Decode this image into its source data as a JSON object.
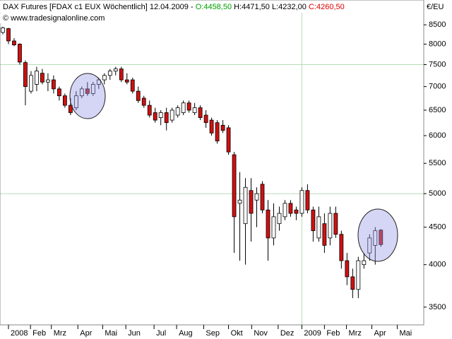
{
  "chart_data": {
    "type": "candlestick",
    "title": "DAX Futures [FDAX c1 EUX  Wöchentlich]",
    "date": "12.04.2009",
    "separator": "-",
    "ohlc_labels": [
      "O:4458,50",
      "H:4471,50",
      "L:4232,00",
      "C:4260,50"
    ],
    "ohlc_label_colors": [
      "#00a000",
      "#000000",
      "#000000",
      "#e00000"
    ],
    "copyright": "© www.tradesignalonline.com",
    "y_axis_label": "€/EU",
    "categories": [
      null,
      null,
      null,
      null,
      null,
      null,
      null,
      null,
      null,
      null,
      null,
      null,
      null,
      null,
      null,
      null,
      null,
      null,
      null,
      null,
      null,
      null,
      null,
      null,
      null,
      null,
      null,
      null,
      null,
      null,
      null,
      null,
      null,
      null,
      null,
      null,
      null,
      null,
      null,
      null,
      null,
      null,
      null,
      null,
      null,
      null,
      null,
      null,
      null,
      null,
      null,
      null,
      null,
      null,
      null,
      null,
      null,
      null,
      null,
      null,
      null,
      null,
      null,
      null,
      null,
      null,
      null,
      null
    ],
    "open": [
      8300,
      8400,
      8080,
      8000,
      7550,
      6900,
      7050,
      7300,
      7100,
      7150,
      6950,
      6800,
      6600,
      6550,
      6800,
      6950,
      6850,
      7050,
      7150,
      7250,
      7350,
      7400,
      7150,
      7150,
      6900,
      6750,
      6600,
      6450,
      6350,
      6450,
      6300,
      6400,
      6450,
      6650,
      6450,
      6550,
      6400,
      6300,
      6250,
      6200,
      6150,
      5650,
      4850,
      4550,
      5050,
      4900,
      5150,
      4750,
      4350,
      4550,
      4650,
      4850,
      4750,
      4700,
      5050,
      4750,
      4350,
      4550,
      4350,
      4700,
      4400,
      4050,
      3850,
      3700,
      4000,
      4150,
      4250,
      4458.5
    ],
    "high": [
      8450,
      8420,
      8150,
      8020,
      7600,
      7350,
      7450,
      7400,
      7300,
      7250,
      7000,
      6850,
      6750,
      6900,
      7000,
      7100,
      7100,
      7200,
      7300,
      7400,
      7450,
      7450,
      7300,
      7200,
      7000,
      6800,
      6700,
      6550,
      6500,
      6550,
      6550,
      6600,
      6700,
      6700,
      6650,
      6600,
      6500,
      6350,
      6300,
      6300,
      6200,
      5700,
      5350,
      5250,
      5250,
      5100,
      5200,
      4900,
      4850,
      4800,
      4900,
      4900,
      4800,
      5100,
      5150,
      4800,
      4800,
      4700,
      4800,
      4800,
      4450,
      4150,
      3950,
      4100,
      4150,
      4400,
      4500,
      4471.5
    ],
    "low": [
      8250,
      8000,
      7950,
      7500,
      6600,
      6850,
      6900,
      7050,
      6900,
      6850,
      6700,
      6550,
      6400,
      6500,
      6750,
      6800,
      6800,
      6950,
      7050,
      7150,
      7250,
      7100,
      7050,
      6850,
      6650,
      6550,
      6350,
      6250,
      6200,
      6100,
      6250,
      6350,
      6400,
      6450,
      6400,
      6300,
      6150,
      6000,
      5850,
      6050,
      5650,
      4150,
      4050,
      4000,
      4300,
      4500,
      4700,
      4050,
      4250,
      4450,
      4600,
      4650,
      4600,
      4650,
      4700,
      4300,
      4300,
      4150,
      4250,
      4350,
      3950,
      3750,
      3600,
      3600,
      3950,
      4050,
      4000,
      4232
    ],
    "close": [
      8420,
      8080,
      7980,
      7560,
      7000,
      7250,
      7350,
      7100,
      7150,
      6950,
      6800,
      6600,
      6450,
      6800,
      6950,
      6850,
      7050,
      7150,
      7250,
      7350,
      7400,
      7150,
      7100,
      6900,
      6700,
      6600,
      6400,
      6300,
      6450,
      6250,
      6500,
      6550,
      6650,
      6500,
      6550,
      6350,
      6250,
      6050,
      5900,
      6100,
      5700,
      4650,
      4900,
      5100,
      4700,
      5000,
      4750,
      4350,
      4650,
      4700,
      4850,
      4700,
      4700,
      5050,
      4750,
      4450,
      4650,
      4250,
      4700,
      4400,
      4050,
      3850,
      3700,
      4050,
      4050,
      4350,
      4450,
      4260.5
    ],
    "up_color": "#ffffff",
    "down_color": "#d01010",
    "log_scale": true,
    "ylim": [
      3310,
      9190
    ],
    "yticks": [
      3500,
      4000,
      4500,
      5000,
      5500,
      6000,
      6500,
      7000,
      7500,
      8000,
      8500
    ],
    "grid_y": [
      7500,
      5000
    ],
    "grid_x": [
      53
    ],
    "grid_color": "#b8dcb8",
    "xlim": [
      -0.5,
      74.6
    ],
    "xticks": [
      {
        "value": 1,
        "label": "2008"
      },
      {
        "value": 4.9,
        "label": "Feb"
      },
      {
        "value": 8.6,
        "label": "Mrz"
      },
      {
        "value": 13.3,
        "label": "Apr"
      },
      {
        "value": 17.7,
        "label": "Mai"
      },
      {
        "value": 21.8,
        "label": "Jun"
      },
      {
        "value": 26.8,
        "label": "Jul"
      },
      {
        "value": 30.8,
        "label": "Aug"
      },
      {
        "value": 35.6,
        "label": "Sep"
      },
      {
        "value": 40,
        "label": "Okt"
      },
      {
        "value": 44.1,
        "label": "Nov"
      },
      {
        "value": 48.8,
        "label": "Dez"
      },
      {
        "value": 53,
        "label": "2009"
      },
      {
        "value": 57,
        "label": "Feb"
      },
      {
        "value": 60.9,
        "label": "Mrz"
      },
      {
        "value": 65.4,
        "label": "Apr"
      },
      {
        "value": 69.9,
        "label": "Mai"
      }
    ]
  }
}
